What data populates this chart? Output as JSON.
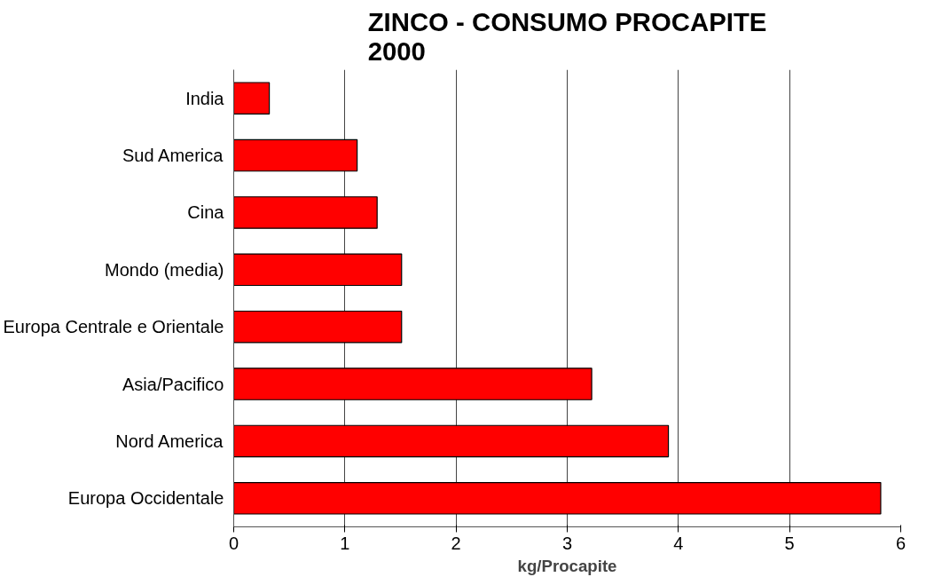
{
  "chart_data": {
    "type": "bar",
    "orientation": "horizontal",
    "title": "ZINCO - CONSUMO PROCAPITE\n2000",
    "xlabel": "kg/Procapite",
    "categories": [
      "India",
      "Sud America",
      "Cina",
      "Mondo (media)",
      "Europa Centrale e Orientale",
      "Asia/Pacifico",
      "Nord America",
      "Europa Occidentale"
    ],
    "values": [
      0.32,
      1.11,
      1.29,
      1.51,
      1.51,
      3.22,
      3.91,
      5.82
    ],
    "color": "#ff0000",
    "xlim": [
      0,
      6
    ],
    "xticks": [
      0,
      1,
      2,
      3,
      4,
      5,
      6
    ],
    "grid": "x"
  }
}
